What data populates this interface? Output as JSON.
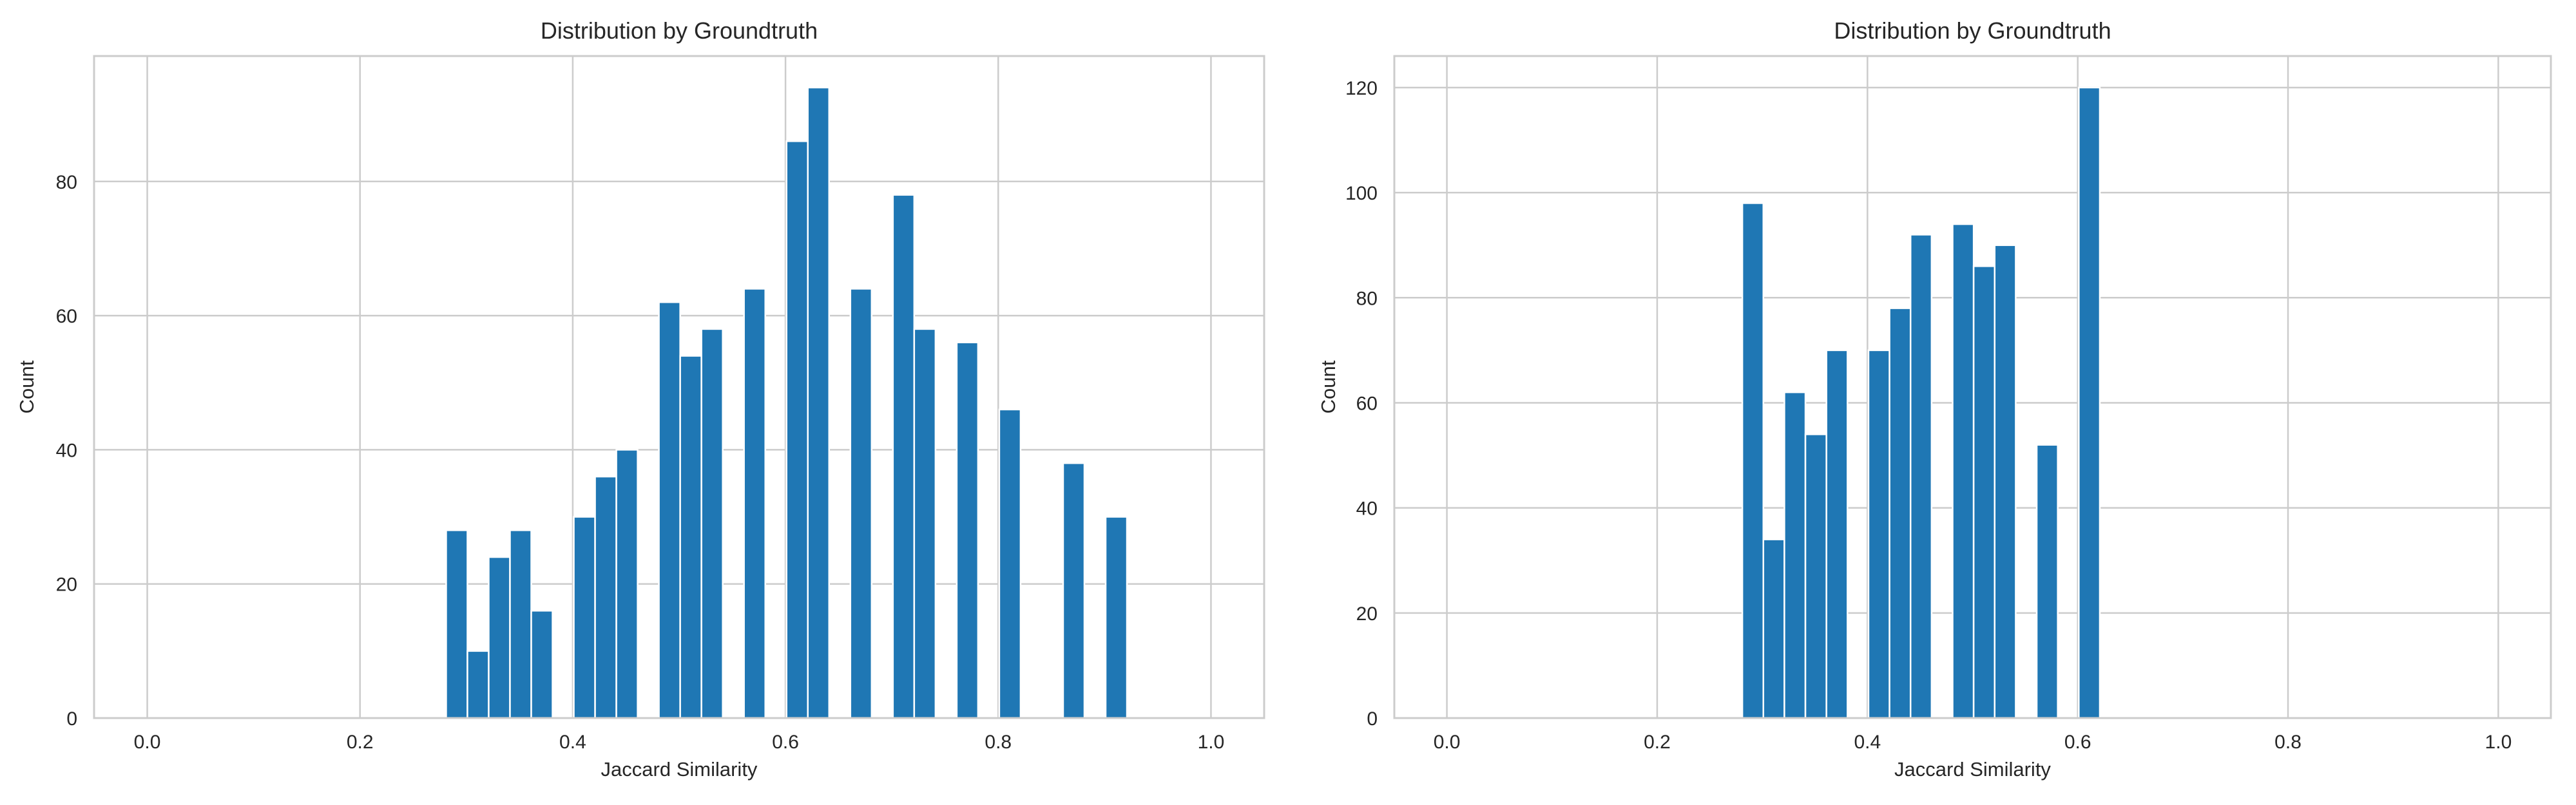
{
  "chart_data": [
    {
      "type": "bar",
      "title": "Distribution by Groundtruth",
      "xlabel": "Jaccard Similarity",
      "ylabel": "Count",
      "xlim": [
        -0.05,
        1.05
      ],
      "ylim": [
        0,
        98.7
      ],
      "xticks": [
        "0.0",
        "0.2",
        "0.4",
        "0.6",
        "0.8",
        "1.0"
      ],
      "yticks": [
        "0",
        "20",
        "40",
        "60",
        "80"
      ],
      "grid": true,
      "bar_color": "#1f77b4",
      "bin_start": 0.281,
      "bin_width": 0.02,
      "values": [
        28,
        10,
        24,
        28,
        16,
        0,
        30,
        36,
        40,
        0,
        62,
        54,
        58,
        0,
        64,
        0,
        86,
        94,
        0,
        64,
        0,
        78,
        58,
        0,
        56,
        0,
        46,
        0,
        0,
        38,
        0,
        30
      ]
    },
    {
      "type": "bar",
      "title": "Distribution by Groundtruth",
      "xlabel": "Jaccard Similarity",
      "ylabel": "Count",
      "xlim": [
        -0.05,
        1.05
      ],
      "ylim": [
        0,
        126
      ],
      "xticks": [
        "0.0",
        "0.2",
        "0.4",
        "0.6",
        "0.8",
        "1.0"
      ],
      "yticks": [
        "0",
        "20",
        "40",
        "60",
        "80",
        "100",
        "120"
      ],
      "grid": true,
      "bar_color": "#1f77b4",
      "bin_start": 0.281,
      "bin_width": 0.02,
      "values": [
        98,
        34,
        62,
        54,
        70,
        0,
        70,
        78,
        92,
        0,
        94,
        86,
        90,
        0,
        52,
        0,
        120
      ]
    }
  ]
}
